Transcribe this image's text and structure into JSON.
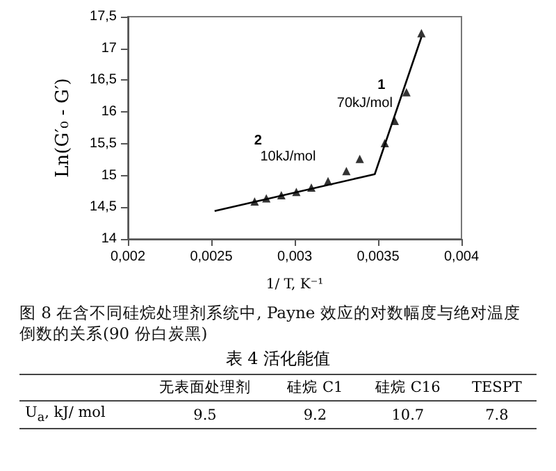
{
  "chart_data": {
    "type": "scatter",
    "xlabel": "1/ T, K⁻¹",
    "ylabel": "Ln(G′₀ - G′)",
    "xlim": [
      0.002,
      0.004
    ],
    "xticks": [
      {
        "value": 0.002,
        "label": "0,002"
      },
      {
        "value": 0.0025,
        "label": "0,0025"
      },
      {
        "value": 0.003,
        "label": "0,003"
      },
      {
        "value": 0.0035,
        "label": "0,0035"
      },
      {
        "value": 0.004,
        "label": "0,004"
      }
    ],
    "ylim": [
      14,
      17.5
    ],
    "yticks": [
      14,
      {
        "value": 14.5,
        "label": "14,5"
      },
      15,
      {
        "value": 15.5,
        "label": "15,5"
      },
      16,
      {
        "value": 16.5,
        "label": "16,5"
      },
      17,
      {
        "value": 17.5,
        "label": "17,5"
      }
    ],
    "grid": false,
    "series": [
      {
        "marker": "triangle",
        "color": "#000000",
        "x": [
          0.00276,
          0.00283,
          0.00292,
          0.00301,
          0.0031,
          0.0032,
          0.00331,
          0.00339,
          0.00354,
          0.0036,
          0.00367,
          0.00376
        ],
        "values": [
          14.59,
          14.64,
          14.69,
          14.74,
          14.81,
          14.91,
          15.07,
          15.26,
          15.51,
          15.86,
          16.31,
          17.24
        ]
      },
      {
        "type": "line",
        "marker": "none",
        "line_style": "solid",
        "color": "#000000",
        "x": [
          0.00252,
          0.00348,
          0.00376
        ],
        "values": [
          14.44,
          15.02,
          17.18
        ]
      }
    ],
    "annotations": [
      "1",
      "70kJ/mol",
      "2",
      "10kJ/mol",
      "图 8  在含不同硅烷处理剂系统中, Payne 效应的对数幅度与绝对温度倒数的关系(90 份白炭黑)",
      "表 4  活化能值",
      "无表面处理剂",
      "硅烷 C1",
      "硅烷 C16",
      "TESPT",
      "U$_{a}$, kJ/ mol",
      "9.5",
      "9.2",
      "10.7",
      "7.8"
    ]
  }
}
